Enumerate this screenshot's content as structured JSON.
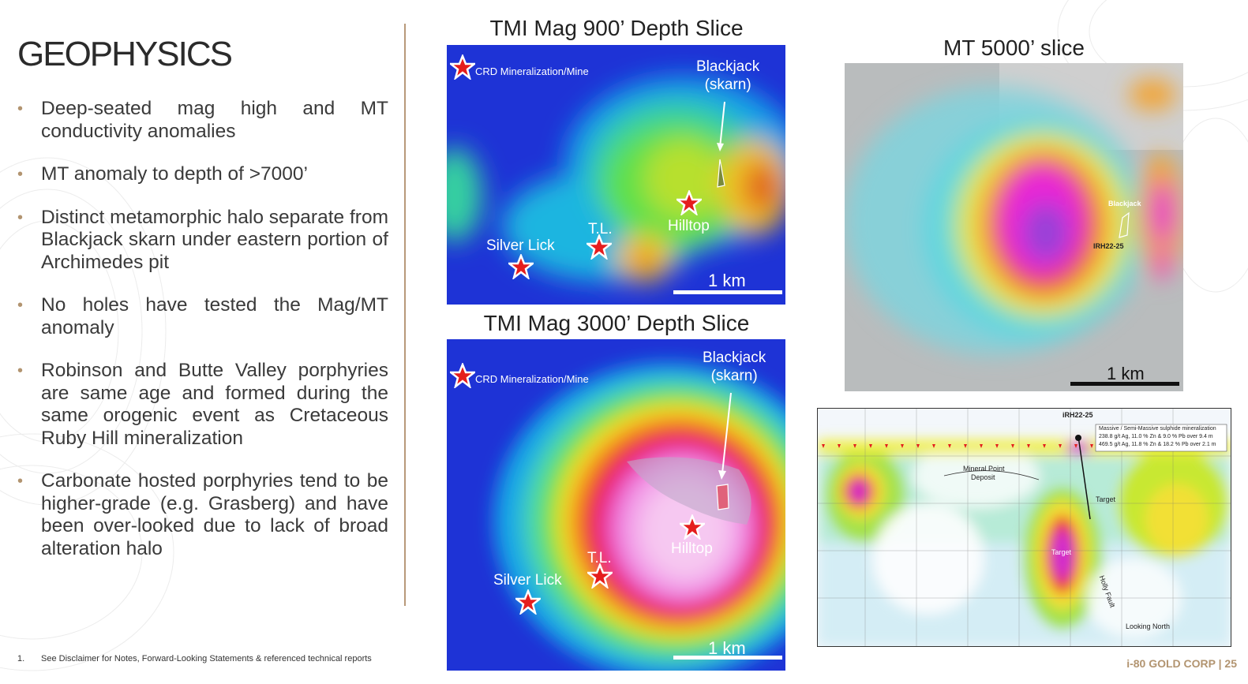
{
  "slide": {
    "title": "GEOPHYSICS",
    "bullets": [
      "Deep-seated mag high and MT conductivity anomalies",
      "MT anomaly to depth of >7000’",
      "Distinct metamorphic halo separate from Blackjack skarn under eastern portion of Archimedes pit",
      "No holes have tested the Mag/MT anomaly",
      "Robinson and Butte Valley porphyries are same age and formed during the same orogenic event as Cretaceous Ruby Hill mineralization",
      "Carbonate hosted porphyries tend to be higher-grade (e.g. Grasberg) and have been over-looked due to lack of broad alteration halo"
    ],
    "footnote_number": "1.",
    "footnote_text": "See Disclaimer for Notes, Forward-Looking Statements & referenced technical reports",
    "brand": "i-80 GOLD CORP | 25"
  },
  "map900": {
    "title": "TMI Mag 900’ Depth Slice",
    "legend": "CRD Mineralization/Mine",
    "blackjack_line1": "Blackjack",
    "blackjack_line2": "(skarn)",
    "hilltop": "Hilltop",
    "tl": "T.L.",
    "silver_lick": "Silver Lick",
    "scale": "1 km"
  },
  "map3000": {
    "title": "TMI Mag 3000’ Depth Slice",
    "legend": "CRD Mineralization/Mine",
    "blackjack_line1": "Blackjack",
    "blackjack_line2": "(skarn)",
    "hilltop": "Hilltop",
    "tl": "T.L.",
    "silver_lick": "Silver Lick",
    "scale": "1 km"
  },
  "mt5000": {
    "title": "MT 5000’ slice",
    "blackjack": "Blackjack",
    "hole": "IRH22-25",
    "scale": "1 km"
  },
  "section": {
    "hole": "iRH22-25",
    "note_line1": "Massive / Semi-Massive sulphide mineralization",
    "note_line2": "238.8 g/t Ag, 11.0 % Zn & 9.0 % Pb over 9.4 m",
    "note_line3": "469.5 g/t Ag, 11.8 % Zn & 18.2 % Pb over 2.1 m",
    "deposit_line1": "Mineral Point",
    "deposit_line2": "Deposit",
    "target_upper": "Target",
    "target_lower": "Target",
    "fault": "Holly Fault",
    "view": "Looking North"
  }
}
